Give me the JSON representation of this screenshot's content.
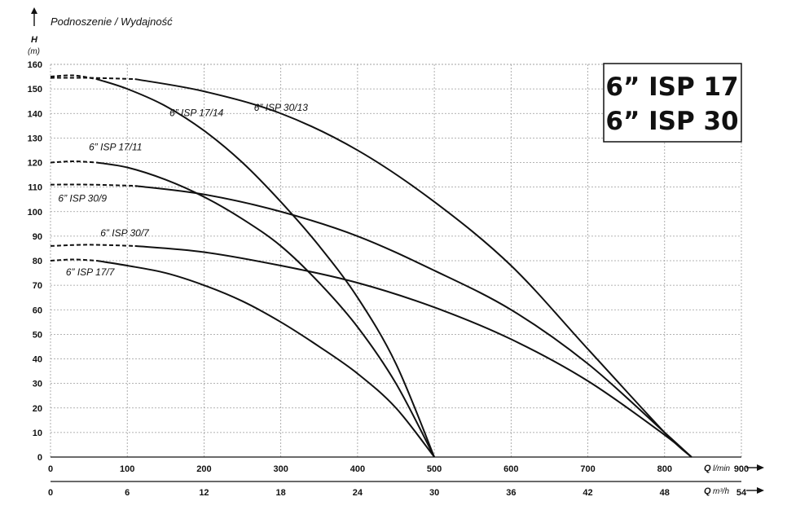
{
  "chart_data": {
    "type": "line",
    "title": "Podnoszenie / Wydajność",
    "ylabel": "H",
    "yunit": "(m)",
    "xlabel": "Q",
    "xunit": "l/min",
    "x2label": "Q",
    "x2unit": "m³/h",
    "ylim": [
      0,
      160
    ],
    "xlim": [
      0,
      900
    ],
    "yticks": [
      "0",
      "10",
      "20",
      "30",
      "40",
      "50",
      "60",
      "70",
      "80",
      "90",
      "100",
      "110",
      "120",
      "130",
      "140",
      "150",
      "160"
    ],
    "xticks": [
      "0",
      "100",
      "200",
      "300",
      "400",
      "500",
      "600",
      "700",
      "800",
      "900"
    ],
    "x2ticks": [
      "0",
      "6",
      "12",
      "18",
      "24",
      "30",
      "36",
      "42",
      "48",
      "54"
    ],
    "grid": true,
    "brand_lines": [
      "6” ISP 17",
      "6” ISP 30"
    ],
    "series": [
      {
        "name": "6” ISP 17/14",
        "dashed_until": 60,
        "points": [
          [
            0,
            155
          ],
          [
            30,
            155.5
          ],
          [
            60,
            154
          ],
          [
            100,
            150
          ],
          [
            150,
            143
          ],
          [
            200,
            133
          ],
          [
            250,
            120
          ],
          [
            300,
            104
          ],
          [
            350,
            86
          ],
          [
            400,
            65
          ],
          [
            450,
            38
          ],
          [
            500,
            0
          ]
        ]
      },
      {
        "name": "6” ISP 30/13",
        "dashed_until": 110,
        "points": [
          [
            0,
            154.5
          ],
          [
            50,
            154.5
          ],
          [
            110,
            154
          ],
          [
            200,
            149
          ],
          [
            300,
            140
          ],
          [
            400,
            125
          ],
          [
            500,
            104
          ],
          [
            600,
            78
          ],
          [
            700,
            44
          ],
          [
            800,
            10
          ],
          [
            835,
            0
          ]
        ]
      },
      {
        "name": "6” ISP 17/11",
        "dashed_until": 60,
        "points": [
          [
            0,
            120
          ],
          [
            30,
            120.5
          ],
          [
            60,
            120
          ],
          [
            100,
            118
          ],
          [
            150,
            113
          ],
          [
            200,
            106
          ],
          [
            250,
            97
          ],
          [
            300,
            86
          ],
          [
            350,
            71
          ],
          [
            400,
            53
          ],
          [
            450,
            30
          ],
          [
            500,
            0
          ]
        ]
      },
      {
        "name": "6” ISP 30/9",
        "dashed_until": 110,
        "points": [
          [
            0,
            111
          ],
          [
            50,
            111
          ],
          [
            110,
            110.5
          ],
          [
            200,
            107
          ],
          [
            300,
            100
          ],
          [
            400,
            90
          ],
          [
            500,
            76
          ],
          [
            600,
            60
          ],
          [
            700,
            38
          ],
          [
            800,
            10
          ],
          [
            835,
            0
          ]
        ]
      },
      {
        "name": "6” ISP 30/7",
        "dashed_until": 110,
        "points": [
          [
            0,
            86
          ],
          [
            50,
            86.5
          ],
          [
            110,
            86
          ],
          [
            200,
            83.5
          ],
          [
            300,
            78
          ],
          [
            400,
            71
          ],
          [
            500,
            61
          ],
          [
            600,
            48
          ],
          [
            700,
            31
          ],
          [
            800,
            9
          ],
          [
            835,
            0
          ]
        ]
      },
      {
        "name": "6” ISP 17/7",
        "dashed_until": 60,
        "points": [
          [
            0,
            80
          ],
          [
            30,
            80.5
          ],
          [
            60,
            80
          ],
          [
            100,
            78
          ],
          [
            150,
            75
          ],
          [
            200,
            70
          ],
          [
            250,
            63.5
          ],
          [
            300,
            55
          ],
          [
            350,
            45
          ],
          [
            400,
            34
          ],
          [
            450,
            20
          ],
          [
            500,
            0
          ]
        ]
      }
    ],
    "label_positions_data": [
      {
        "series": 0,
        "x": 155,
        "y": 139
      },
      {
        "series": 1,
        "x": 265,
        "y": 141
      },
      {
        "series": 2,
        "x": 50,
        "y": 125
      },
      {
        "series": 3,
        "x": 10,
        "y": 104
      },
      {
        "series": 4,
        "x": 65,
        "y": 90
      },
      {
        "series": 5,
        "x": 20,
        "y": 74
      }
    ]
  }
}
